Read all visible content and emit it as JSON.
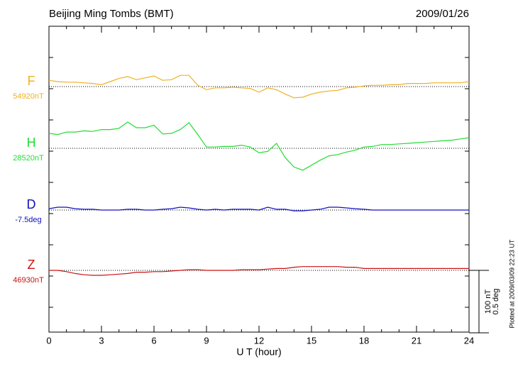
{
  "chart_data": {
    "type": "line",
    "title": "Beijing Ming Tombs (BMT)",
    "date": "2009/01/26",
    "xlabel": "U T (hour)",
    "xlim": [
      0,
      24
    ],
    "xticks": [
      0,
      3,
      6,
      9,
      12,
      15,
      18,
      21,
      24
    ],
    "x": [
      0,
      0.5,
      1,
      1.5,
      2,
      2.5,
      3,
      3.5,
      4,
      4.5,
      5,
      5.5,
      6,
      6.5,
      7,
      7.5,
      8,
      8.5,
      9,
      9.5,
      10,
      10.5,
      11,
      11.5,
      12,
      12.5,
      13,
      13.5,
      14,
      14.5,
      15,
      15.5,
      16,
      16.5,
      17,
      17.5,
      18,
      18.5,
      19,
      19.5,
      20,
      20.5,
      21,
      21.5,
      22,
      22.5,
      23,
      23.5,
      24
    ],
    "scale": {
      "nT": {
        "value": 100,
        "label": "100 nT"
      },
      "deg": {
        "value": 0.5,
        "label": "0.5 deg"
      }
    },
    "footnote": "Plotted at 2009/03/09 22:23 UT",
    "series": [
      {
        "name": "F",
        "color": "#f0b020",
        "unit": "nT",
        "baseline": {
          "value": 54920,
          "label": "54920nT"
        },
        "values": [
          54930,
          54928,
          54927,
          54927,
          54926,
          54925,
          54923,
          54928,
          54933,
          54936,
          54931,
          54934,
          54937,
          54930,
          54931,
          54938,
          54938,
          54922,
          54915,
          54918,
          54918,
          54919,
          54918,
          54917,
          54911,
          54918,
          54915,
          54908,
          54902,
          54903,
          54908,
          54911,
          54913,
          54914,
          54918,
          54919,
          54921,
          54922,
          54922,
          54923,
          54923,
          54925,
          54925,
          54925,
          54926,
          54926,
          54926,
          54926,
          54928
        ]
      },
      {
        "name": "H",
        "color": "#22dd33",
        "unit": "nT",
        "baseline": {
          "value": 28520,
          "label": "28520nT"
        },
        "values": [
          28544,
          28542,
          28546,
          28546,
          28548,
          28547,
          28550,
          28550,
          28552,
          28562,
          28553,
          28553,
          28557,
          28543,
          28544,
          28550,
          28561,
          28542,
          28522,
          28522,
          28523,
          28523,
          28525,
          28522,
          28513,
          28515,
          28528,
          28505,
          28490,
          28485,
          28493,
          28501,
          28508,
          28510,
          28514,
          28517,
          28522,
          28523,
          28526,
          28526,
          28527,
          28528,
          28529,
          28530,
          28531,
          28532,
          28533,
          28535,
          28537
        ]
      },
      {
        "name": "D",
        "color": "#1010c0",
        "unit": "deg",
        "baseline": {
          "value": -7.5,
          "label": "-7.5deg"
        },
        "values": [
          -7.489,
          -7.477,
          -7.477,
          -7.489,
          -7.494,
          -7.494,
          -7.5,
          -7.5,
          -7.5,
          -7.494,
          -7.494,
          -7.5,
          -7.5,
          -7.494,
          -7.489,
          -7.477,
          -7.483,
          -7.494,
          -7.5,
          -7.494,
          -7.5,
          -7.494,
          -7.494,
          -7.494,
          -7.5,
          -7.477,
          -7.494,
          -7.494,
          -7.506,
          -7.506,
          -7.5,
          -7.494,
          -7.477,
          -7.477,
          -7.483,
          -7.489,
          -7.494,
          -7.5,
          -7.5,
          -7.5,
          -7.5,
          -7.5,
          -7.5,
          -7.5,
          -7.5,
          -7.5,
          -7.5,
          -7.5,
          -7.5
        ]
      },
      {
        "name": "Z",
        "color": "#cc1010",
        "unit": "nT",
        "baseline": {
          "value": 46930,
          "label": "46930nT"
        },
        "values": [
          46930,
          46930,
          46928,
          46925,
          46923,
          46922,
          46922,
          46923,
          46924,
          46925,
          46927,
          46927,
          46928,
          46928,
          46929,
          46930,
          46931,
          46931,
          46930,
          46930,
          46930,
          46930,
          46931,
          46931,
          46931,
          46932,
          46933,
          46933,
          46935,
          46936,
          46936,
          46936,
          46936,
          46936,
          46935,
          46935,
          46933,
          46933,
          46933,
          46933,
          46933,
          46933,
          46933,
          46933,
          46933,
          46933,
          46933,
          46933,
          46933
        ]
      }
    ]
  }
}
